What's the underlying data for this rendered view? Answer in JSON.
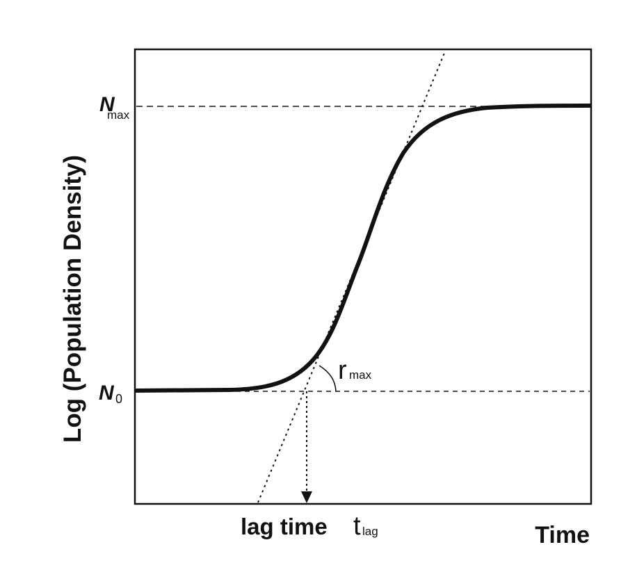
{
  "diagram": {
    "y_axis_label": "Log (Population Density)",
    "x_axis_label": "Time",
    "n_max": {
      "symbol": "N",
      "subscript": "max"
    },
    "n_zero": {
      "symbol": "N",
      "subscript": "0"
    },
    "r_max": {
      "symbol": "r",
      "subscript": "max"
    },
    "lag_time": {
      "text": "lag time",
      "symbol": "t",
      "subscript": "lag"
    }
  }
}
